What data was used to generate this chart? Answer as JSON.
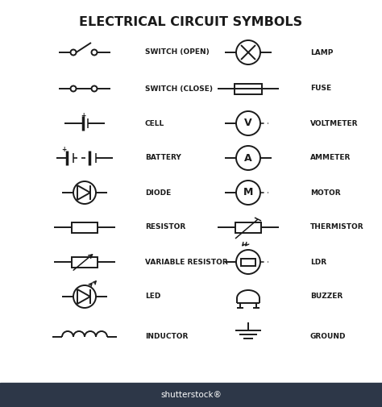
{
  "title": "ELECTRICAL CIRCUIT SYMBOLS",
  "title_fontsize": 11.5,
  "label_fontsize": 6.5,
  "bg_color": "#ffffff",
  "line_color": "#1a1a1a",
  "text_color": "#1a1a1a",
  "symbols_left": [
    "SWITCH (OPEN)",
    "SWITCH (CLOSE)",
    "CELL",
    "BATTERY",
    "DIODE",
    "RESISTOR",
    "VARIABLE RESISTOR",
    "LED",
    "INDUCTOR"
  ],
  "symbols_right": [
    "LAMP",
    "FUSE",
    "VOLTMETER",
    "AMMETER",
    "MOTOR",
    "THERMISTOR",
    "LDR",
    "BUZZER",
    "GROUND"
  ]
}
